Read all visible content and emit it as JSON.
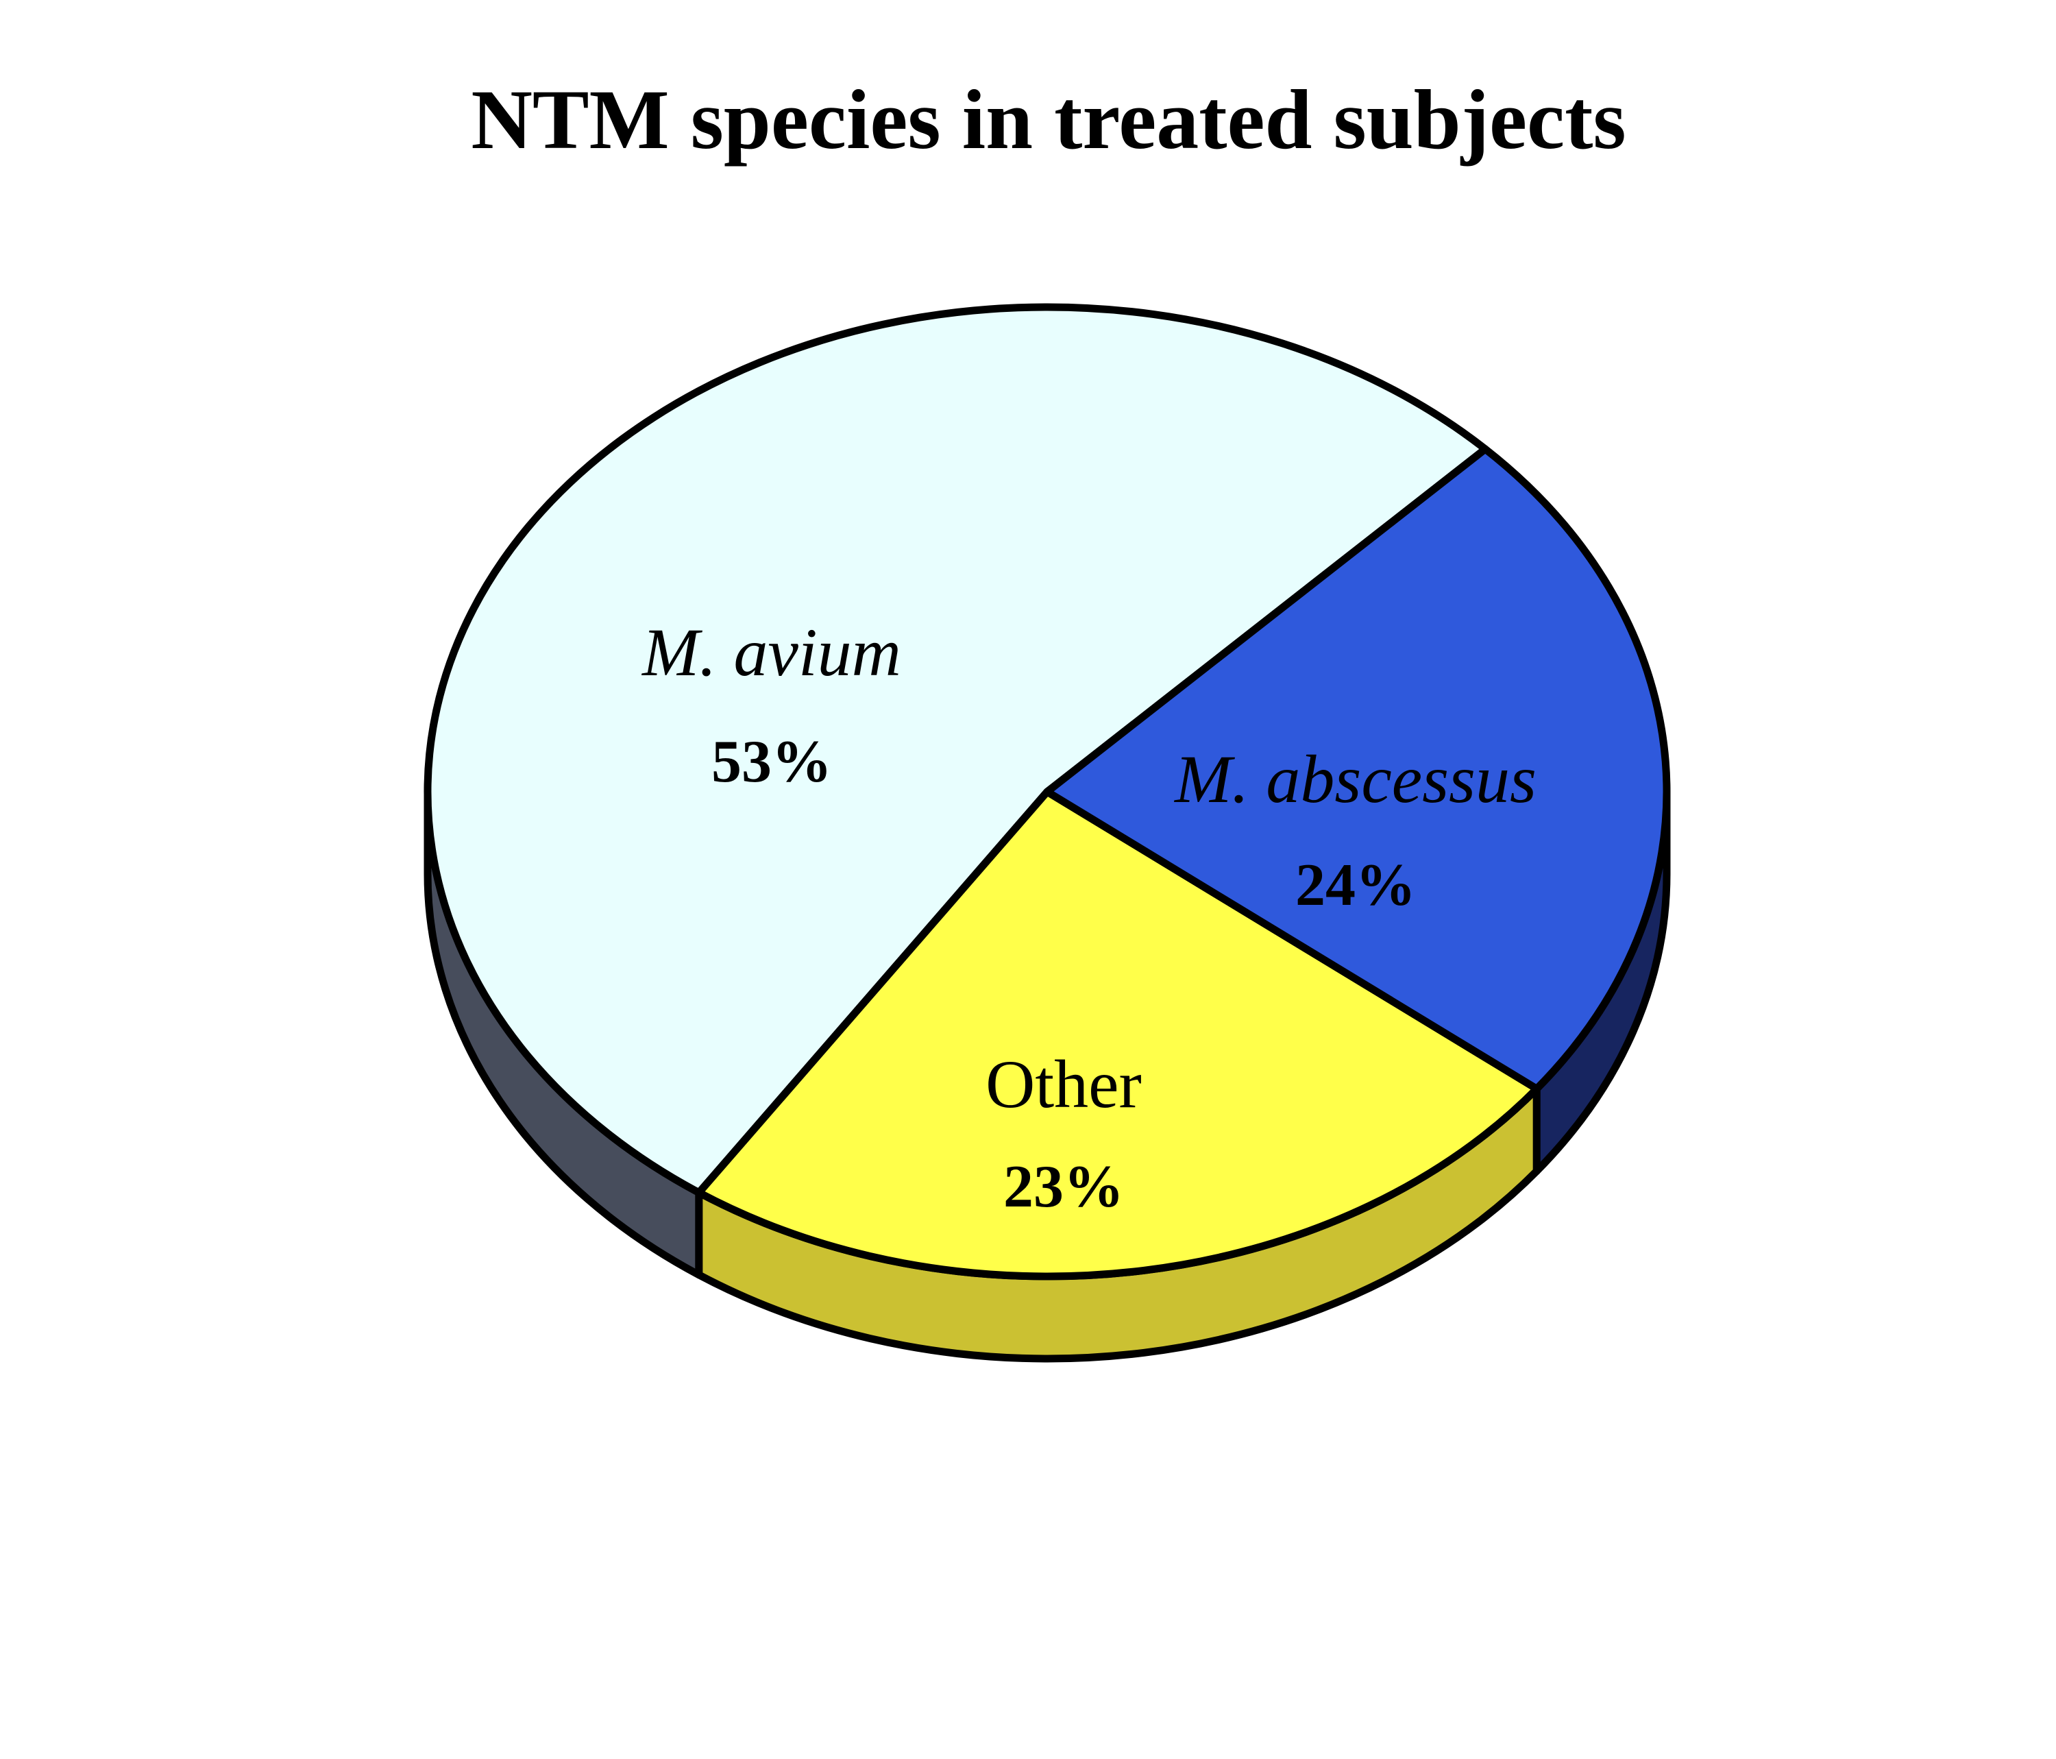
{
  "chart_data": {
    "type": "pie",
    "title": "NTM species in treated subjects",
    "style": "3d",
    "slices": [
      {
        "label": "M. avium",
        "value": 53,
        "value_label": "53%",
        "italic": true,
        "color": "#E8FEFE",
        "side_color": "#474D5C"
      },
      {
        "label": "M. abscessus",
        "value": 24,
        "value_label": "24%",
        "italic": true,
        "color": "#FFFF4A",
        "side_color": "#CBC132"
      },
      {
        "label": "Other",
        "value": 23,
        "value_label": "23%",
        "italic": false,
        "color": "#2F59DC",
        "side_color": "#172560"
      }
    ],
    "outline_color": "#000000",
    "background_color": "#FFFFFF"
  }
}
